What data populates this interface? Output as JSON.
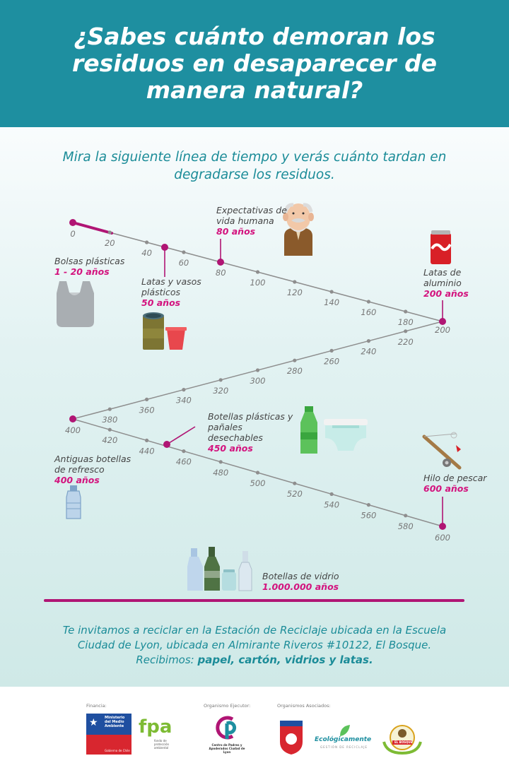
{
  "header": {
    "title": "¿Sabes cuánto demoran los residuos en desaparecer de manera natural?"
  },
  "intro": "Mira la siguiente línea de tiempo y verás cuánto tardan en degradarse los residuos.",
  "timeline": {
    "ticks": [
      "0",
      "20",
      "40",
      "60",
      "80",
      "100",
      "120",
      "140",
      "160",
      "180",
      "200",
      "220",
      "240",
      "260",
      "280",
      "300",
      "320",
      "340",
      "360",
      "380",
      "400",
      "420",
      "440",
      "460",
      "480",
      "500",
      "520",
      "540",
      "560",
      "580",
      "600"
    ]
  },
  "items": [
    {
      "name": "Bolsas plásticas",
      "years": "1 - 20 años"
    },
    {
      "name": "Latas y vasos plásticos",
      "years": "50 años"
    },
    {
      "name": "Expectativas de vida humana",
      "years": "80 años"
    },
    {
      "name": "Latas de aluminio",
      "years": "200 años"
    },
    {
      "name": "Antiguas botellas de refresco",
      "years": "400 años"
    },
    {
      "name": "Botellas plásticas y pañales desechables",
      "years": "450 años"
    },
    {
      "name": "Hilo de pescar",
      "years": "600 años"
    },
    {
      "name": "Botellas de vidrio",
      "years": "1.000.000 años"
    }
  ],
  "footer": {
    "line1": "Te invitamos a reciclar en la Estación de Reciclaje ubicada en la Escuela Ciudad de Lyon, ubicada en Almirante Riveros #10122, El Bosque.",
    "line2a": "Recibimos:",
    "line2b": "papel, cartón, vidrios y latas."
  },
  "logos": {
    "financia": "Financia:",
    "ejecutor": "Organismo Ejecutor:",
    "asociados": "Organismos Asociados:",
    "ministerio": "Ministerio del Medio Ambiente",
    "gobierno": "Gobierno de Chile",
    "fpa": "fpa",
    "fpa_sub": "fondo de protección ambiental",
    "cp_sub": "Centro de Padres y Apoderados Ciudad de Lyon",
    "ecologicamente": "Ecológicamente",
    "eco_sub": "GESTIÓN DE RECICLAJE",
    "elbosque": "EL BOSQUE"
  },
  "colors": {
    "teal": "#1e8fa0",
    "magenta": "#c0137a",
    "line": "#8e8e8e"
  }
}
